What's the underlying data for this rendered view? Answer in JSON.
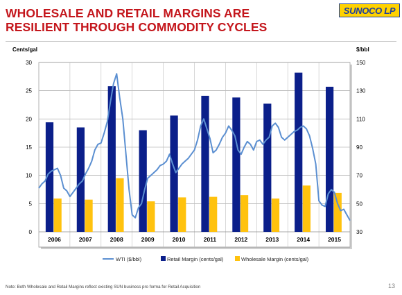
{
  "slide": {
    "title_line1": "WHOLESALE AND RETAIL MARGINS ARE",
    "title_line2": "RESILIENT THROUGH COMMODITY CYCLES",
    "logo_text": "SUNOCO LP",
    "note": "Note: Both Wholesale and Retail Margins reflect existing SUN business pro forma for Retail Acquisition",
    "page_number": "13",
    "colors": {
      "title": "#c4161c",
      "retail": "#0b1f8a",
      "wholesale": "#ffc20e",
      "wti": "#5b8fd1"
    }
  },
  "chart_data": {
    "type": "bar",
    "categories": [
      "2006",
      "2007",
      "2008",
      "2009",
      "2010",
      "2011",
      "2012",
      "2013",
      "2014",
      "2015"
    ],
    "y_left": {
      "label": "Cents/gal",
      "min": 0,
      "max": 30,
      "ticks": [
        0,
        5,
        10,
        15,
        20,
        25,
        30
      ]
    },
    "y_right": {
      "label": "$/bbl",
      "min": 30,
      "max": 150,
      "ticks": [
        30,
        50,
        70,
        90,
        110,
        130,
        150
      ]
    },
    "grid": true,
    "legend_position": "bottom",
    "series": [
      {
        "name": "Retail Margin (cents/gal)",
        "type": "bar",
        "axis": "left",
        "values": [
          19.4,
          18.5,
          25.8,
          18.0,
          20.6,
          24.1,
          23.8,
          22.7,
          28.2,
          25.7
        ]
      },
      {
        "name": "Wholesale Margin (cents/gal)",
        "type": "bar",
        "axis": "left",
        "values": [
          5.9,
          5.7,
          9.5,
          5.4,
          6.1,
          6.2,
          6.5,
          5.9,
          8.2,
          6.9
        ]
      },
      {
        "name": "WTI ($/bbl)",
        "type": "line",
        "axis": "right",
        "x": [
          2006.0,
          2006.1,
          2006.2,
          2006.3,
          2006.4,
          2006.5,
          2006.6,
          2006.7,
          2006.8,
          2006.9,
          2007.0,
          2007.1,
          2007.2,
          2007.3,
          2007.4,
          2007.5,
          2007.6,
          2007.7,
          2007.8,
          2007.9,
          2008.0,
          2008.1,
          2008.2,
          2008.3,
          2008.4,
          2008.5,
          2008.6,
          2008.7,
          2008.8,
          2008.9,
          2009.0,
          2009.1,
          2009.2,
          2009.3,
          2009.4,
          2009.5,
          2009.6,
          2009.7,
          2009.8,
          2009.9,
          2010.0,
          2010.1,
          2010.2,
          2010.3,
          2010.4,
          2010.5,
          2010.6,
          2010.7,
          2010.8,
          2010.9,
          2011.0,
          2011.1,
          2011.2,
          2011.3,
          2011.4,
          2011.5,
          2011.6,
          2011.7,
          2011.8,
          2011.9,
          2012.0,
          2012.1,
          2012.2,
          2012.3,
          2012.4,
          2012.5,
          2012.6,
          2012.7,
          2012.8,
          2012.9,
          2013.0,
          2013.1,
          2013.2,
          2013.3,
          2013.4,
          2013.5,
          2013.6,
          2013.7,
          2013.8,
          2013.9,
          2014.0,
          2014.1,
          2014.2,
          2014.3,
          2014.4,
          2014.5,
          2014.6,
          2014.7,
          2014.8,
          2014.9,
          2015.0,
          2015.1,
          2015.2,
          2015.3,
          2015.4,
          2015.5,
          2015.6,
          2015.7,
          2015.8,
          2015.9,
          2016.0
        ],
        "values": [
          61,
          64,
          66,
          71,
          73,
          74,
          75,
          70,
          61,
          59,
          55,
          58,
          61,
          64,
          66,
          71,
          75,
          80,
          88,
          92,
          93,
          100,
          108,
          122,
          135,
          142,
          125,
          110,
          85,
          60,
          42,
          40,
          47,
          50,
          60,
          68,
          70,
          72,
          74,
          77,
          78,
          80,
          85,
          78,
          72,
          75,
          78,
          80,
          82,
          85,
          88,
          95,
          105,
          110,
          103,
          96,
          86,
          88,
          92,
          97,
          100,
          105,
          102,
          98,
          88,
          85,
          90,
          94,
          92,
          88,
          94,
          95,
          92,
          95,
          97,
          105,
          107,
          104,
          97,
          95,
          97,
          99,
          101,
          102,
          104,
          105,
          103,
          98,
          89,
          78,
          52,
          49,
          48,
          57,
          60,
          58,
          50,
          45,
          46,
          42,
          38
        ]
      }
    ]
  }
}
